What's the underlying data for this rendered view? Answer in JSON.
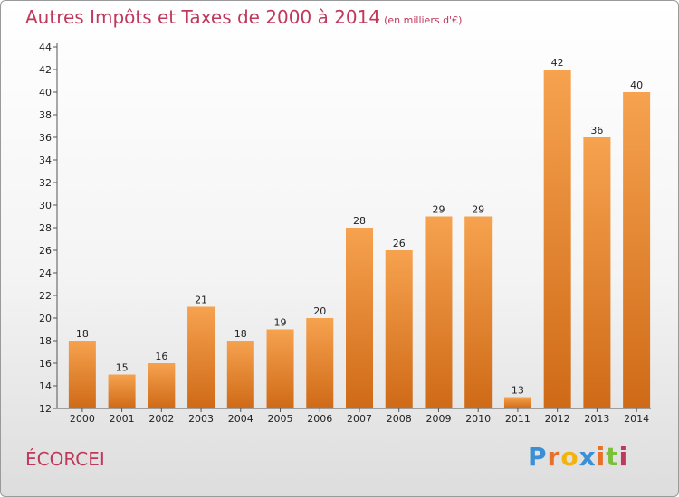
{
  "title": "Autres Impôts et Taxes de 2000 à 2014",
  "subtitle": "(en milliers d'€)",
  "commune": "ÉCORCEI",
  "brand": [
    "P",
    "r",
    "o",
    "x",
    "i",
    "t",
    "i"
  ],
  "colors": {
    "bar_top": "#f6a24f",
    "bar_bottom": "#cf6a17",
    "axis": "#555555",
    "title": "#c0385b"
  },
  "chart_data": {
    "type": "bar",
    "categories": [
      "2000",
      "2001",
      "2002",
      "2003",
      "2004",
      "2005",
      "2006",
      "2007",
      "2008",
      "2009",
      "2010",
      "2011",
      "2012",
      "2013",
      "2014"
    ],
    "values": [
      18,
      15,
      16,
      21,
      18,
      19,
      20,
      28,
      26,
      29,
      29,
      13,
      42,
      36,
      40
    ],
    "ylim": [
      12,
      44
    ],
    "yticks": [
      12,
      14,
      16,
      18,
      20,
      22,
      24,
      26,
      28,
      30,
      32,
      34,
      36,
      38,
      40,
      42,
      44
    ],
    "grid": false,
    "title": "Autres Impôts et Taxes de 2000 à 2014",
    "xlabel": "",
    "ylabel": ""
  }
}
